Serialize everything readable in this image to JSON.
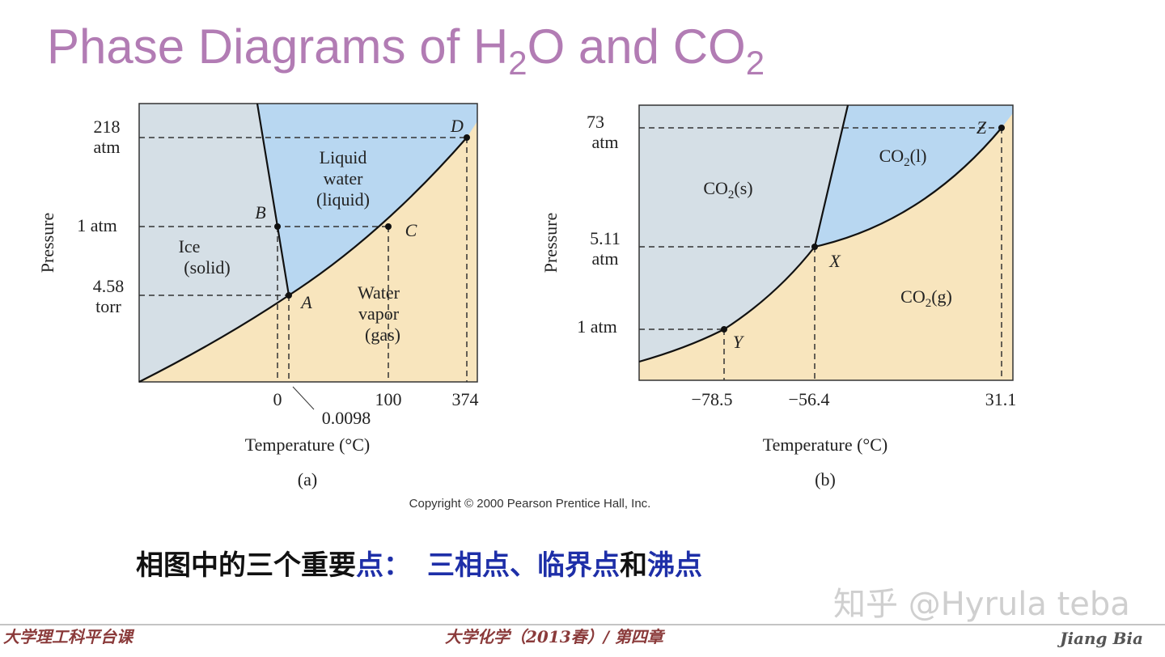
{
  "title": {
    "parts": [
      "Phase Diagrams of H",
      "2",
      "O and CO",
      "2"
    ]
  },
  "diagram_a": {
    "y_labels": [
      [
        "218",
        "atm"
      ],
      [
        "1 atm"
      ],
      [
        "4.58",
        "torr"
      ]
    ],
    "x_labels": [
      "0",
      "0.0098",
      "100",
      "374"
    ],
    "y_axis": "Pressure",
    "x_axis": "Temperature (°C)",
    "regions": {
      "liquid": [
        "Liquid",
        "water",
        "(liquid)"
      ],
      "solid": [
        "Ice",
        "(solid)"
      ],
      "gas": [
        "Water",
        "vapor",
        "(gas)"
      ]
    },
    "points": [
      "B",
      "C",
      "A",
      "D"
    ],
    "caption": "(a)"
  },
  "diagram_b": {
    "y_labels": [
      [
        "73",
        "atm"
      ],
      [
        "5.11",
        "atm"
      ],
      [
        "1 atm"
      ]
    ],
    "x_labels": [
      "−78.5",
      "−56.4",
      "31.1"
    ],
    "y_axis": "Pressure",
    "x_axis": "Temperature (°C)",
    "regions": {
      "solid": [
        "CO",
        "2",
        "(s)"
      ],
      "liquid": [
        "CO",
        "2",
        "(l)"
      ],
      "gas": [
        "CO",
        "2",
        "(g)"
      ]
    },
    "points": [
      "Z",
      "X",
      "Y"
    ],
    "caption": "(b)"
  },
  "copyright": "Copyright © 2000 Pearson Prentice Hall, Inc.",
  "note": [
    "相图中的三个重要",
    "点：",
    "三相点、临界点",
    "和",
    "沸点"
  ],
  "footer": {
    "left": "大学理工科平台课",
    "center": "大学化学（2013春）/ 第四章",
    "right": "Jiang Bia"
  },
  "watermark": "知乎 @Hyrula teba"
}
